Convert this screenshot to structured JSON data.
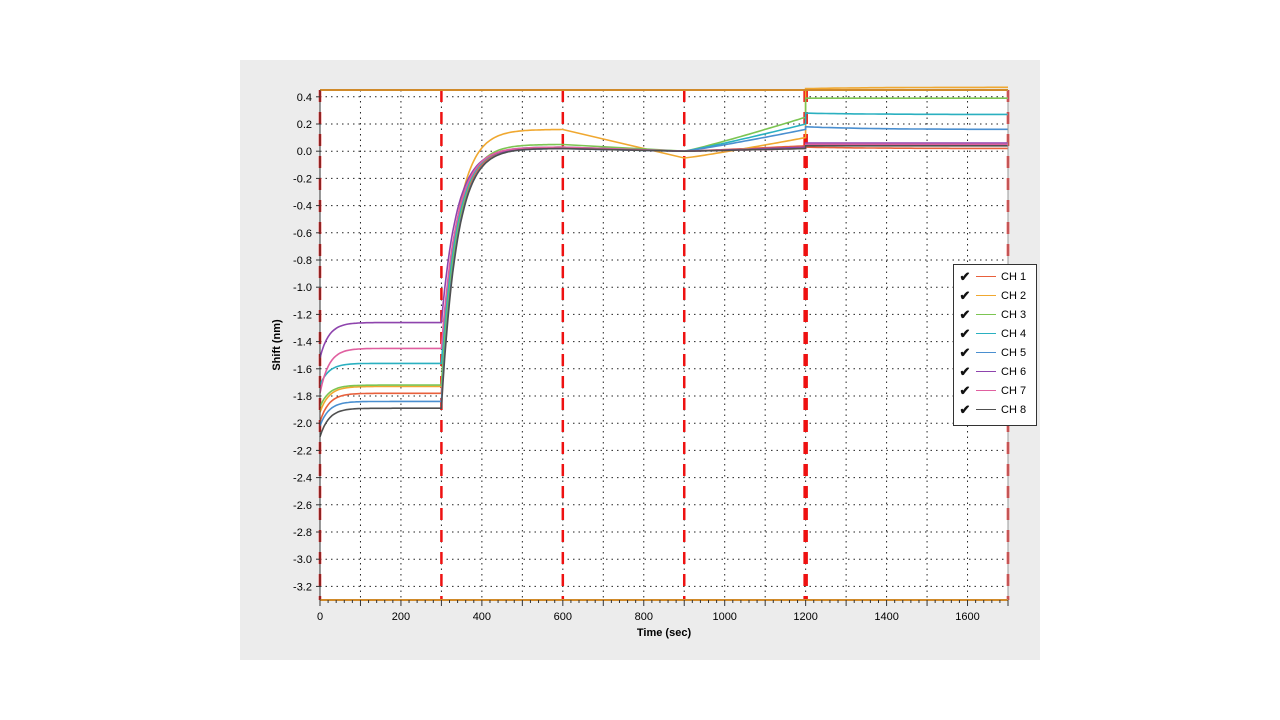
{
  "chart_data": {
    "type": "line",
    "title": "",
    "xlabel": "Time (sec)",
    "ylabel": "Shift (nm)",
    "xlim": [
      0,
      1700
    ],
    "ylim": [
      -3.3,
      0.45
    ],
    "xticks": [
      0,
      200,
      400,
      600,
      800,
      1000,
      1200,
      1400,
      1600
    ],
    "yticks": [
      0.4,
      0.2,
      0.0,
      -0.2,
      -0.4,
      -0.6,
      -0.8,
      -1.0,
      -1.2,
      -1.4,
      -1.6,
      -1.8,
      -2.0,
      -2.2,
      -2.4,
      -2.6,
      -2.8,
      -3.0,
      -3.2
    ],
    "ytick_labels": [
      "0.4",
      "0.2",
      "0.0",
      "-0.2",
      "-0.4",
      "-0.6",
      "-0.8",
      "-1.0",
      "-1.2",
      "-1.4",
      "-1.6",
      "-1.8",
      "-2.0",
      "-2.2",
      "-2.4",
      "-2.6",
      "-2.8",
      "-3.0",
      "-3.2"
    ],
    "grid": true,
    "legend_position": "right",
    "step_boundaries": [
      0,
      300,
      600,
      900,
      1200,
      1700
    ],
    "series": [
      {
        "name": "CH 1",
        "color": "#e8603c",
        "values": {
          "start": -1.99,
          "baseline_end": -1.78,
          "assoc_end": 0.03,
          "dissoc_start": 0.0,
          "dissoc_end": 0.04,
          "final_start": 0.03,
          "final_end": 0.02
        }
      },
      {
        "name": "CH 2",
        "color": "#f0a830",
        "values": {
          "start": -1.92,
          "baseline_end": -1.73,
          "assoc_end": 0.16,
          "dissoc_start": -0.05,
          "dissoc_end": 0.1,
          "final_start": 0.46,
          "final_end": 0.47
        }
      },
      {
        "name": "CH 3",
        "color": "#7cc552",
        "values": {
          "start": -1.88,
          "baseline_end": -1.72,
          "assoc_end": 0.05,
          "dissoc_start": 0.0,
          "dissoc_end": 0.25,
          "final_start": 0.39,
          "final_end": 0.39
        }
      },
      {
        "name": "CH 4",
        "color": "#2ab0c0",
        "values": {
          "start": -1.72,
          "baseline_end": -1.56,
          "assoc_end": 0.03,
          "dissoc_start": 0.0,
          "dissoc_end": 0.2,
          "final_start": 0.28,
          "final_end": 0.27
        }
      },
      {
        "name": "CH 5",
        "color": "#4a8fd0",
        "values": {
          "start": -2.02,
          "baseline_end": -1.84,
          "assoc_end": 0.02,
          "dissoc_start": 0.0,
          "dissoc_end": 0.16,
          "final_start": 0.18,
          "final_end": 0.16
        }
      },
      {
        "name": "CH 6",
        "color": "#8e44ad",
        "values": {
          "start": -1.52,
          "baseline_end": -1.26,
          "assoc_end": 0.02,
          "dissoc_start": 0.0,
          "dissoc_end": 0.03,
          "final_start": 0.06,
          "final_end": 0.06
        }
      },
      {
        "name": "CH 7",
        "color": "#e060a0",
        "values": {
          "start": -1.78,
          "baseline_end": -1.45,
          "assoc_end": 0.03,
          "dissoc_start": 0.0,
          "dissoc_end": 0.02,
          "final_start": 0.05,
          "final_end": 0.05
        }
      },
      {
        "name": "CH 8",
        "color": "#505050",
        "values": {
          "start": -2.1,
          "baseline_end": -1.89,
          "assoc_end": 0.02,
          "dissoc_start": 0.0,
          "dissoc_end": 0.02,
          "final_start": 0.04,
          "final_end": 0.04
        }
      }
    ]
  },
  "legend": {
    "check_icon": "check-icon",
    "items": [
      {
        "label": "CH 1",
        "color": "#e8603c"
      },
      {
        "label": "CH 2",
        "color": "#f0a830"
      },
      {
        "label": "CH 3",
        "color": "#7cc552"
      },
      {
        "label": "CH 4",
        "color": "#2ab0c0"
      },
      {
        "label": "CH 5",
        "color": "#4a8fd0"
      },
      {
        "label": "CH 6",
        "color": "#8e44ad"
      },
      {
        "label": "CH 7",
        "color": "#e060a0"
      },
      {
        "label": "CH 8",
        "color": "#505050"
      }
    ]
  },
  "colors": {
    "boundary": "#ee1111",
    "frame_top": "#d08a2a",
    "grid": "#222222"
  }
}
